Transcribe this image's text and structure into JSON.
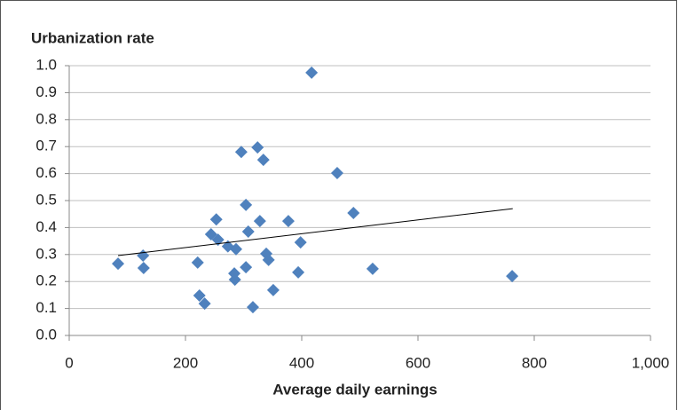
{
  "chart_data": {
    "type": "scatter",
    "title": "Urbanization rate",
    "x_label": "Average daily earnings",
    "series": [
      {
        "color": "#4f81bd",
        "x": [
          84,
          127,
          128,
          221,
          224,
          233,
          244,
          253,
          256,
          273,
          284,
          285,
          287,
          296,
          304,
          304,
          308,
          316,
          324,
          328,
          334,
          339,
          343,
          351,
          377,
          394,
          398,
          417,
          461,
          489,
          522,
          762
        ],
        "values": [
          0.266,
          0.296,
          0.25,
          0.27,
          0.148,
          0.118,
          0.375,
          0.43,
          0.355,
          0.33,
          0.23,
          0.207,
          0.32,
          0.68,
          0.253,
          0.484,
          0.385,
          0.105,
          0.697,
          0.424,
          0.651,
          0.303,
          0.28,
          0.168,
          0.424,
          0.234,
          0.345,
          0.974,
          0.602,
          0.454,
          0.247,
          0.22
        ]
      }
    ],
    "trendline": {
      "color": "#000000",
      "x": [
        84,
        763
      ],
      "values": [
        0.296,
        0.47
      ]
    },
    "xlim": [
      0,
      1000
    ],
    "xticks": [
      0,
      200,
      400,
      600,
      800,
      {
        "value": 1000,
        "label": "1,000"
      }
    ],
    "ylim": [
      0,
      1
    ],
    "yticks": [
      {
        "value": 0,
        "label": "0.0"
      },
      0.1,
      0.2,
      0.3,
      0.4,
      0.5,
      0.6,
      0.7,
      0.8,
      0.9,
      {
        "value": 1,
        "label": "1.0"
      }
    ],
    "grid": true
  }
}
